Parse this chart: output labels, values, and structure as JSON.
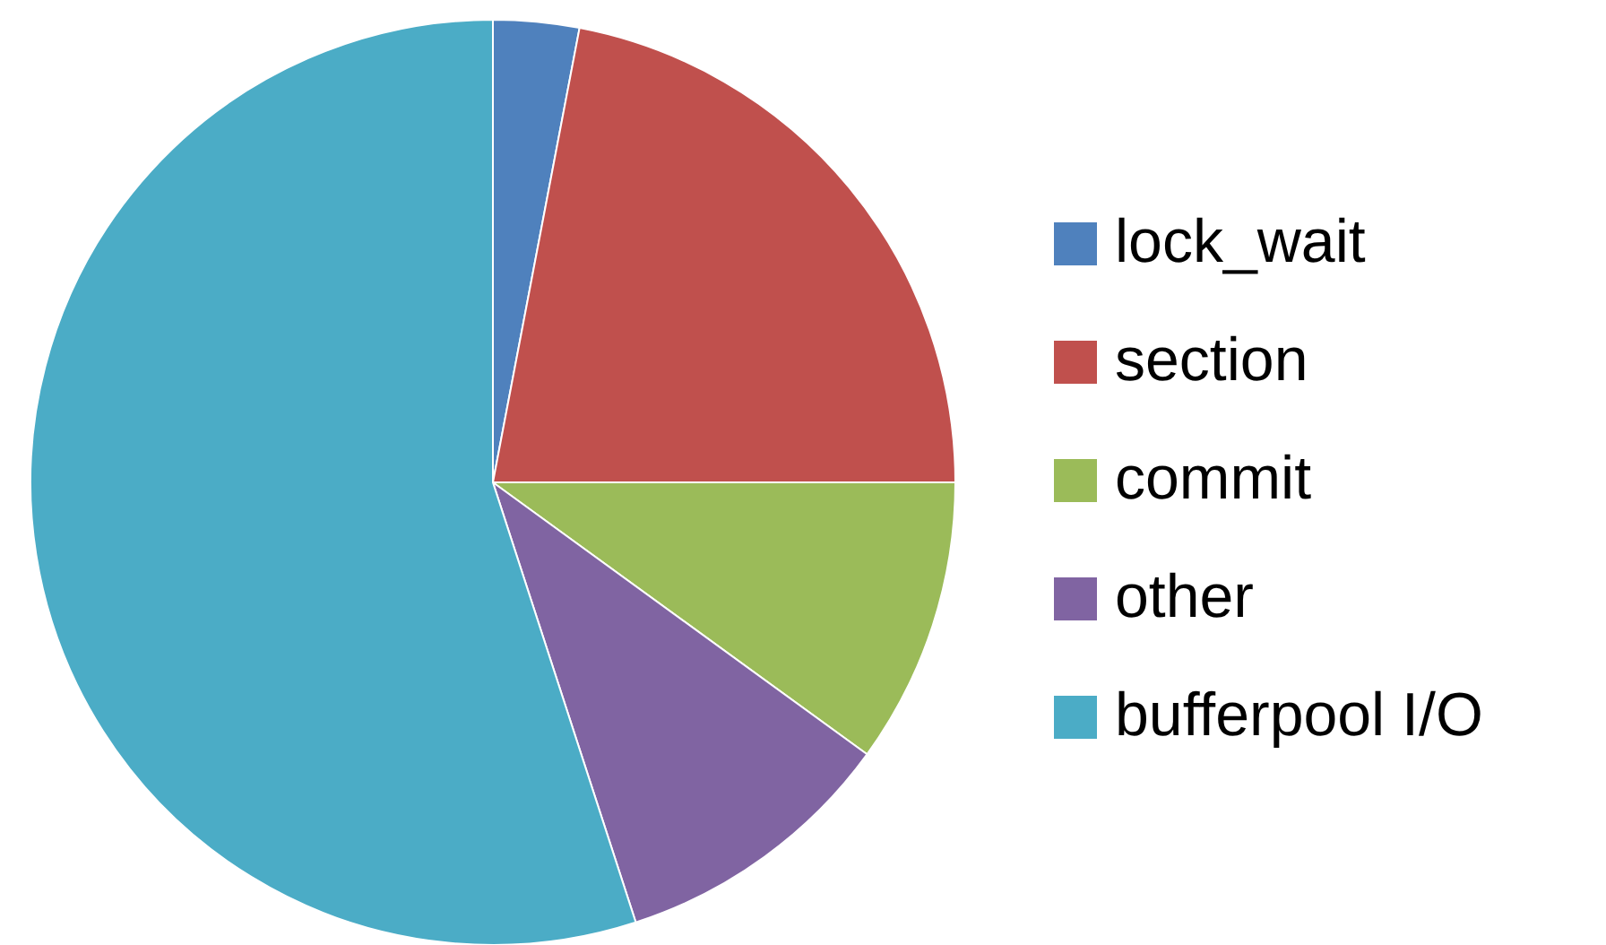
{
  "chart_data": {
    "type": "pie",
    "categories": [
      "lock_wait",
      "section",
      "commit",
      "other",
      "bufferpool I/O"
    ],
    "values": [
      3,
      22,
      10,
      10,
      55
    ],
    "colors": [
      "#4f81bd",
      "#c0504d",
      "#9bbb59",
      "#8064a2",
      "#4bacc6"
    ],
    "legend": "right"
  }
}
